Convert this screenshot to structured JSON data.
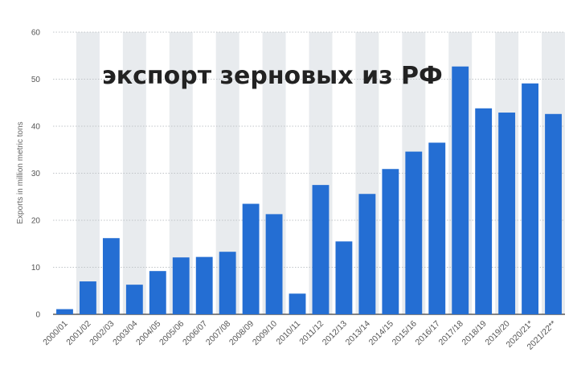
{
  "chart_data": {
    "type": "bar",
    "title": "экспорт зерновых из РФ",
    "ylabel": "Exports in million metric tons",
    "xlabel": "",
    "ylim": [
      0,
      60
    ],
    "yticks": [
      0,
      10,
      20,
      30,
      40,
      50,
      60
    ],
    "grid": true,
    "categories": [
      "2000/01",
      "2001/02",
      "2002/03",
      "2003/04",
      "2004/05",
      "2005/06",
      "2006/07",
      "2007/08",
      "2008/09",
      "2009/10",
      "2010/11",
      "2011/12",
      "2012/13",
      "2013/14",
      "2014/15",
      "2015/16",
      "2016/17",
      "2017/18",
      "2018/19",
      "2019/20",
      "2020/21*",
      "2021/22**"
    ],
    "values": [
      1.1,
      7.0,
      16.2,
      6.3,
      9.2,
      12.1,
      12.2,
      13.3,
      23.5,
      21.3,
      4.4,
      27.5,
      15.5,
      25.6,
      30.9,
      34.6,
      36.5,
      52.7,
      43.8,
      42.9,
      49.1,
      42.6
    ],
    "colors": {
      "bar": "#246ed3",
      "band": "#e8ebee",
      "grid": "#c0c4c8"
    }
  }
}
